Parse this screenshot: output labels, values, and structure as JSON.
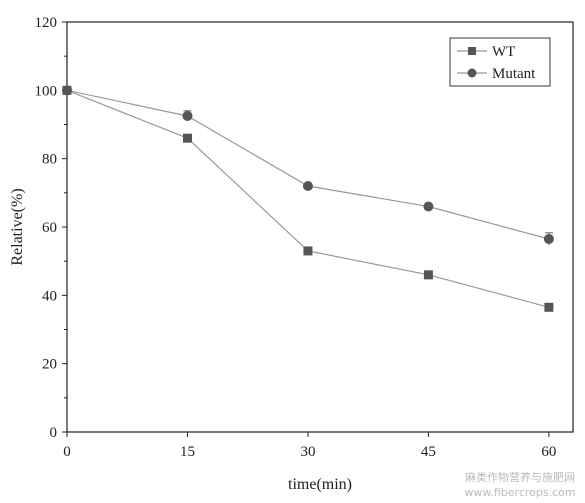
{
  "chart_data": {
    "type": "line",
    "xlabel": "time(min)",
    "ylabel": "Relative(%)",
    "xlim": [
      0,
      63
    ],
    "ylim": [
      0,
      120
    ],
    "x_ticks": [
      0,
      15,
      30,
      45,
      60
    ],
    "y_ticks": [
      0,
      20,
      40,
      60,
      80,
      100,
      120
    ],
    "x": [
      0,
      15,
      30,
      45,
      60
    ],
    "legend_position": "top-right",
    "grid": false,
    "series": [
      {
        "name": "WT",
        "marker": "square",
        "values": [
          100,
          86,
          53,
          46,
          36.5
        ],
        "error": [
          0,
          0,
          0,
          0,
          0
        ]
      },
      {
        "name": "Mutant",
        "marker": "circle",
        "values": [
          100,
          92.5,
          72,
          66,
          56.5
        ],
        "error": [
          0,
          1.5,
          0,
          0,
          1.8
        ]
      }
    ],
    "colors": {
      "line": "#9a9a9a",
      "marker": "#555555",
      "axis": "#222222"
    }
  },
  "watermark": {
    "line1": "麻类作物营养与施肥网",
    "line2": "www.fibercrops.com"
  }
}
